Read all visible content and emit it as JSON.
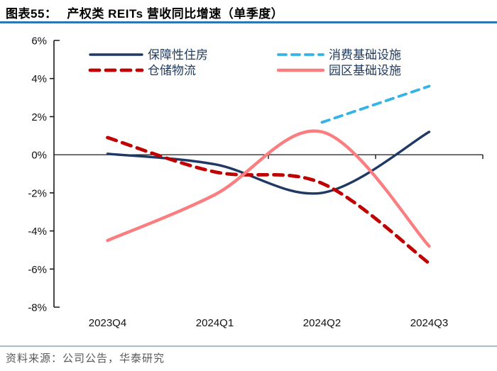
{
  "title": {
    "prefix": "图表55：",
    "text": "产权类 REITs 营收同比增速（单季度）"
  },
  "footer": {
    "text": "资料来源：公司公告，华泰研究"
  },
  "colors": {
    "title_rule": "#2e75b6",
    "footer_rule": "#a8bccf",
    "axis": "#1a1a1a",
    "legend_text": "#1f3a5f"
  },
  "chart_data": {
    "type": "line",
    "categories": [
      "2023Q4",
      "2024Q1",
      "2024Q2",
      "2024Q3"
    ],
    "series": [
      {
        "key": "affordable-housing",
        "name": "保障性住房",
        "color": "#1f3864",
        "style": "solid",
        "values": [
          0.05,
          -0.5,
          -2.0,
          1.2
        ]
      },
      {
        "key": "warehouse-logistics",
        "name": "仓储物流",
        "color": "#c00000",
        "style": "dashed",
        "values": [
          0.9,
          -0.9,
          -1.5,
          -5.7
        ]
      },
      {
        "key": "consumer-infrastructure",
        "name": "消费基础设施",
        "color": "#33b3e6",
        "style": "dashed",
        "values": [
          null,
          null,
          1.7,
          3.6
        ]
      },
      {
        "key": "park-infrastructure",
        "name": "园区基础设施",
        "color": "#fa7d80",
        "style": "solid",
        "values": [
          -4.5,
          -2.1,
          1.2,
          -4.8
        ]
      }
    ],
    "ylim": [
      -8,
      6
    ],
    "ytick_labels": [
      "6%",
      "4%",
      "2%",
      "0%",
      "-2%",
      "-4%",
      "-6%",
      "-8%"
    ],
    "ylabel": "",
    "xlabel": "",
    "grid": false,
    "legend_position": "top-inside",
    "legend_columns": [
      [
        "保障性住房",
        "仓储物流"
      ],
      [
        "消费基础设施",
        "园区基础设施"
      ]
    ]
  }
}
